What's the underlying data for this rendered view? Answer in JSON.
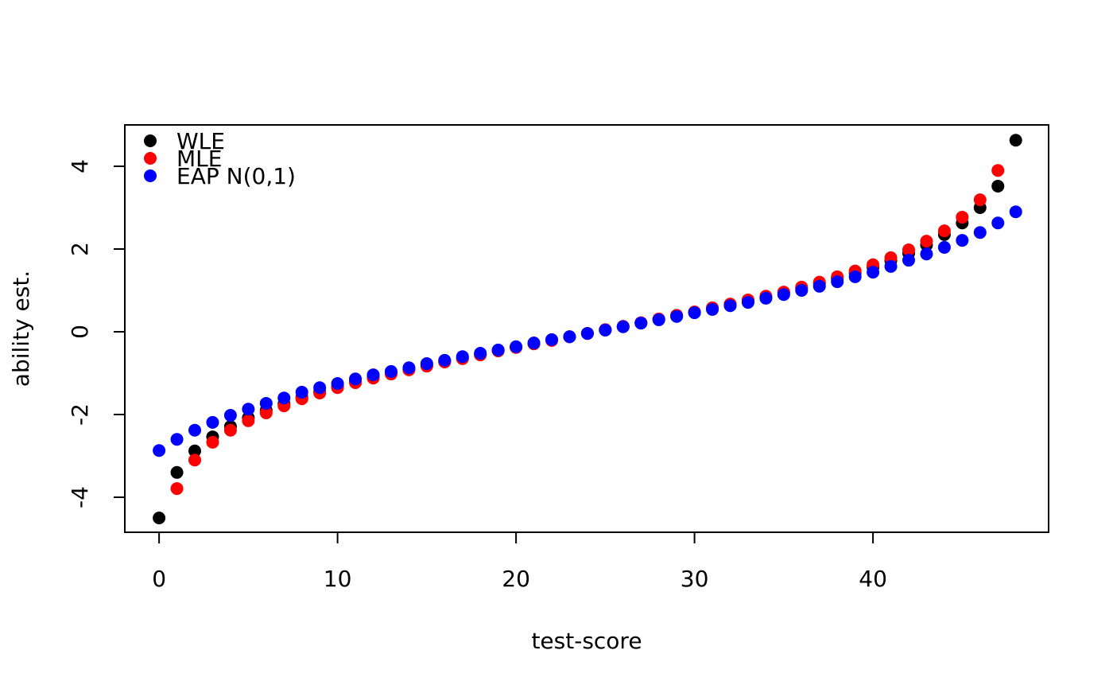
{
  "chart_data": {
    "type": "scatter",
    "xlabel": "test-score",
    "ylabel": "ability est.",
    "x": [
      0,
      1,
      2,
      3,
      4,
      5,
      6,
      7,
      8,
      9,
      10,
      11,
      12,
      13,
      14,
      15,
      16,
      17,
      18,
      19,
      20,
      21,
      22,
      23,
      24,
      25,
      26,
      27,
      28,
      29,
      30,
      31,
      32,
      33,
      34,
      35,
      36,
      37,
      38,
      39,
      40,
      41,
      42,
      43,
      44,
      45,
      46,
      47,
      48
    ],
    "series": [
      {
        "name": "WLE",
        "color": "#000000",
        "values": [
          -4.5,
          -3.4,
          -2.88,
          -2.54,
          -2.29,
          -2.08,
          -1.9,
          -1.74,
          -1.58,
          -1.45,
          -1.32,
          -1.2,
          -1.09,
          -0.99,
          -0.9,
          -0.81,
          -0.72,
          -0.63,
          -0.55,
          -0.46,
          -0.37,
          -0.29,
          -0.2,
          -0.12,
          -0.04,
          0.05,
          0.13,
          0.21,
          0.3,
          0.39,
          0.47,
          0.56,
          0.66,
          0.75,
          0.84,
          0.94,
          1.05,
          1.16,
          1.29,
          1.42,
          1.56,
          1.72,
          1.9,
          2.1,
          2.35,
          2.63,
          3.0,
          3.52,
          4.63
        ]
      },
      {
        "name": "MLE",
        "color": "#ff0000",
        "values": [
          null,
          -3.79,
          -3.1,
          -2.67,
          -2.38,
          -2.15,
          -1.96,
          -1.79,
          -1.62,
          -1.48,
          -1.35,
          -1.23,
          -1.12,
          -1.02,
          -0.92,
          -0.83,
          -0.73,
          -0.65,
          -0.56,
          -0.46,
          -0.38,
          -0.29,
          -0.21,
          -0.12,
          -0.04,
          0.05,
          0.13,
          0.22,
          0.31,
          0.4,
          0.48,
          0.58,
          0.67,
          0.77,
          0.86,
          0.96,
          1.08,
          1.2,
          1.33,
          1.47,
          1.62,
          1.79,
          1.98,
          2.19,
          2.44,
          2.77,
          3.19,
          3.9,
          null
        ]
      },
      {
        "name": "EAP N(0,1)",
        "color": "#0000ff",
        "values": [
          -2.87,
          -2.6,
          -2.38,
          -2.19,
          -2.02,
          -1.87,
          -1.73,
          -1.6,
          -1.46,
          -1.35,
          -1.25,
          -1.14,
          -1.04,
          -0.96,
          -0.87,
          -0.77,
          -0.69,
          -0.6,
          -0.52,
          -0.44,
          -0.36,
          -0.27,
          -0.19,
          -0.12,
          -0.04,
          0.04,
          0.12,
          0.21,
          0.29,
          0.37,
          0.46,
          0.54,
          0.63,
          0.71,
          0.81,
          0.9,
          1.0,
          1.1,
          1.21,
          1.33,
          1.44,
          1.58,
          1.73,
          1.88,
          2.04,
          2.21,
          2.4,
          2.63,
          2.9
        ]
      }
    ],
    "xlim": [
      -1.92,
      49.84
    ],
    "ylim": [
      -4.846,
      5.0
    ],
    "xticks": [
      0,
      10,
      20,
      30,
      40
    ],
    "yticks": [
      -4,
      -2,
      0,
      2,
      4
    ],
    "legend": "top-left"
  }
}
